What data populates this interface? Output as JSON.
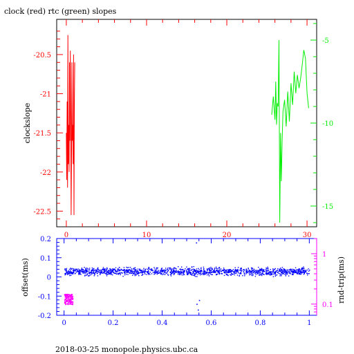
{
  "title": "clock (red) rtc (green) slopes",
  "footer": "2018-03-25 monopole.physics.ubc.ca",
  "colors": {
    "red": "#ff0000",
    "green": "#00ee00",
    "blue": "#0000ff",
    "magenta": "#ff00ff",
    "axis": "#000000"
  },
  "chart_data": [
    {
      "type": "line",
      "title": "clock (red) rtc (green) slopes",
      "xlabel": "",
      "ylabel": "clockslope",
      "y2label": "",
      "xlim": [
        -1.2,
        31.2
      ],
      "ylim": [
        -22.7,
        -20.05
      ],
      "y2lim": [
        -16.25,
        -3.75
      ],
      "x_ticks": [
        0,
        10,
        20,
        30
      ],
      "y_ticks": [
        -20.5,
        -21,
        -21.5,
        -22,
        -22.5
      ],
      "y2_ticks": [
        -5,
        -10,
        -15
      ],
      "grid": false,
      "series": [
        {
          "name": "clock",
          "color": "#ff0000",
          "axis": "left",
          "x": [
            0.0,
            0.05,
            0.1,
            0.15,
            0.2,
            0.25,
            0.3,
            0.35,
            0.4,
            0.45,
            0.5,
            0.55,
            0.6,
            0.65,
            0.7,
            0.75,
            0.8,
            0.85,
            0.9,
            0.95,
            1.0,
            1.05
          ],
          "y": [
            -21.5,
            -22.1,
            -21.1,
            -22.2,
            -20.25,
            -21.9,
            -21.4,
            -22.0,
            -20.6,
            -21.6,
            -20.45,
            -21.3,
            -22.55,
            -21.7,
            -20.6,
            -21.6,
            -21.4,
            -21.9,
            -20.5,
            -22.55,
            -21.2,
            -20.6
          ]
        },
        {
          "name": "rtc",
          "color": "#00ee00",
          "axis": "right",
          "x": [
            25.6,
            25.8,
            26.0,
            26.1,
            26.2,
            26.3,
            26.4,
            26.5,
            26.6,
            26.7,
            26.8,
            26.9,
            27.0,
            27.2,
            27.4,
            27.6,
            27.8,
            28.0,
            28.2,
            28.4,
            28.6,
            28.8,
            29.0,
            29.2,
            29.4,
            29.6,
            29.8,
            30.0,
            30.2
          ],
          "y": [
            -9.5,
            -8.4,
            -9.8,
            -7.5,
            -10.1,
            -8.8,
            -9.0,
            -5.0,
            -16.0,
            -10.6,
            -13.5,
            -11.0,
            -9.3,
            -8.6,
            -10.2,
            -8.1,
            -9.9,
            -7.6,
            -8.9,
            -6.9,
            -8.2,
            -7.1,
            -7.9,
            -7.3,
            -6.5,
            -5.6,
            -6.1,
            -8.2,
            -9.1
          ]
        }
      ]
    },
    {
      "type": "scatter",
      "xlabel": "",
      "ylabel": "offset(ms)",
      "y2label": "rnd-trip(ms)",
      "xlim": [
        -0.03,
        1.03
      ],
      "ylim": [
        -0.2,
        0.2
      ],
      "y2lim": [
        0.06,
        2.0
      ],
      "y2_scale": "log",
      "x_ticks": [
        0,
        0.2,
        0.4,
        0.6,
        0.8,
        1
      ],
      "y_ticks": [
        0.2,
        0.1,
        0,
        -0.1,
        -0.2
      ],
      "y2_ticks": [
        1,
        0.1
      ],
      "grid": false,
      "series": [
        {
          "name": "offset",
          "color": "#0000ff",
          "axis": "left",
          "x_range": [
            0.0,
            1.0
          ],
          "y_center": 0.03,
          "y_spread": 0.02,
          "count": 1500,
          "features": [
            {
              "x": 0.545,
              "y": -0.17
            },
            {
              "x": 0.538,
              "y": 0.18
            },
            {
              "x": 0.55,
              "y": -0.12
            },
            {
              "x": 0.54,
              "y": -0.14
            }
          ]
        },
        {
          "name": "rnd-trip",
          "color": "#ff00ff",
          "axis": "right",
          "x_range": [
            0.0,
            0.035
          ],
          "y_range": [
            0.1,
            0.16
          ],
          "count": 120
        }
      ]
    }
  ]
}
